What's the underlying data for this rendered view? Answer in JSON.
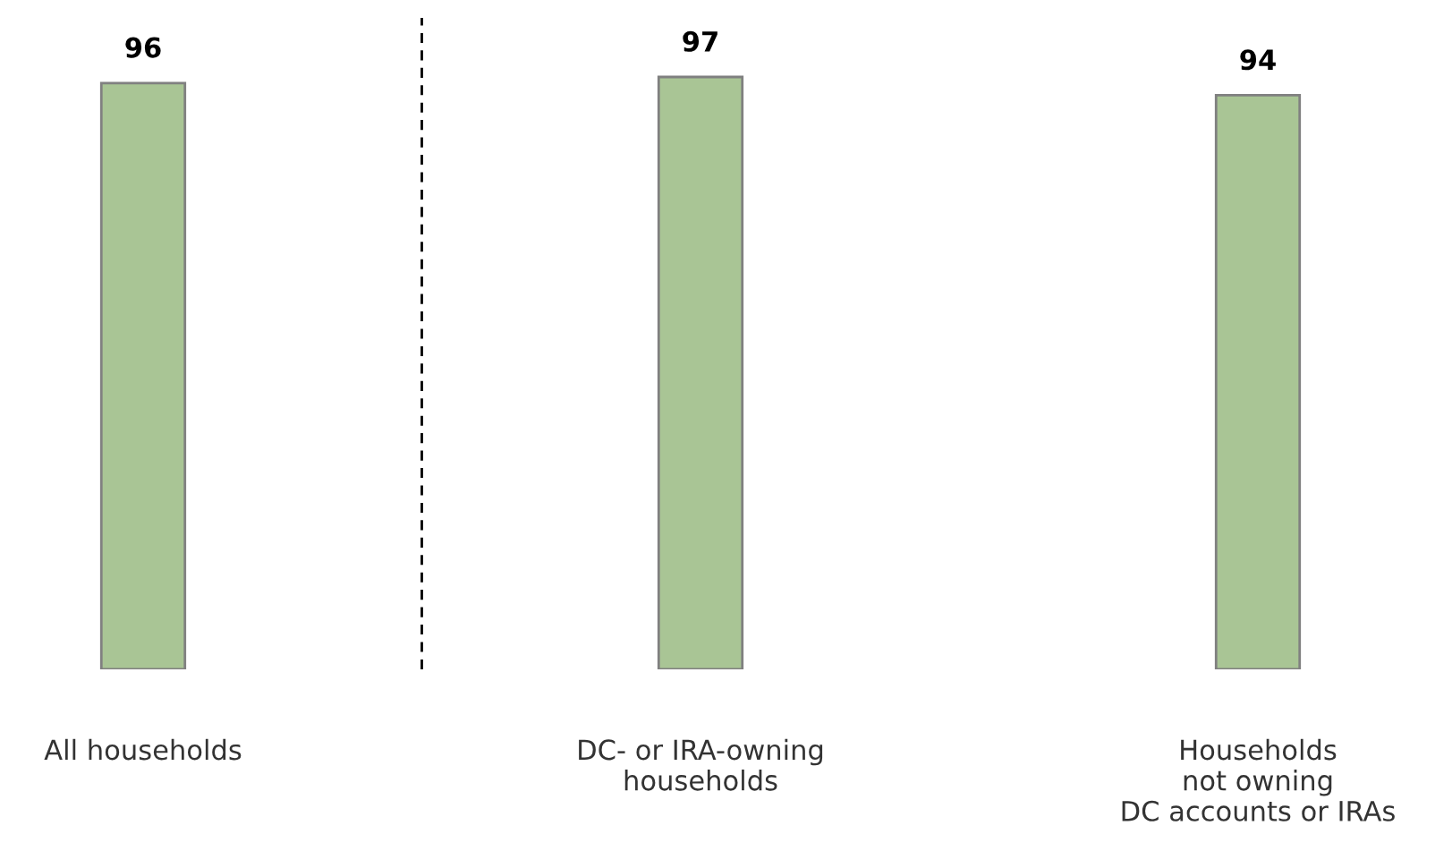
{
  "chart_data": {
    "type": "bar",
    "categories": [
      "All households",
      "DC- or IRA-owning\nhouseholds",
      "Households\nnot owning\nDC accounts or IRAs"
    ],
    "values": [
      96,
      97,
      94
    ],
    "color": "#a9c595",
    "data_labels": true,
    "grid": false,
    "legend": false
  }
}
